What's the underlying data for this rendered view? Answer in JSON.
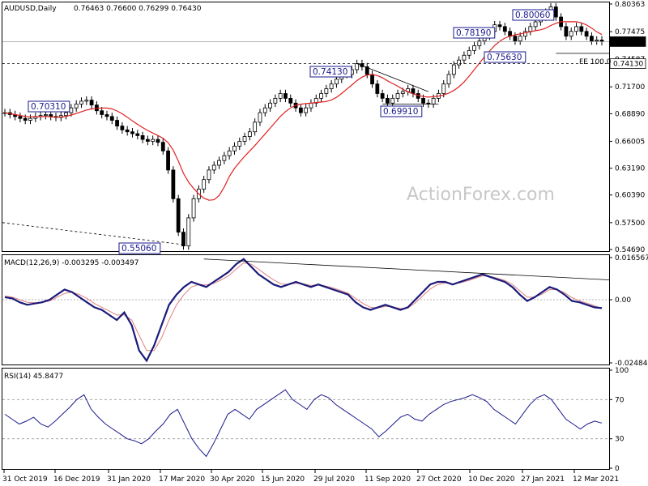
{
  "header": {
    "symbol": "AUDUSD,Daily",
    "ohlc": "0.76463 0.76600 0.76299 0.76430"
  },
  "watermark": "ActionForex.com",
  "colors": {
    "candle": "#000000",
    "ma": "#e02020",
    "macd": "#1a1a7a",
    "signal": "#e08080",
    "rsi": "#1a1a8c",
    "label_border": "#1a1a8c"
  },
  "chart_data": [
    {
      "type": "candlestick",
      "title": "AUDUSD,Daily",
      "y_ticks": [
        "0.80363",
        "0.77475",
        "0.74587",
        "0.71700",
        "0.68890",
        "0.66005",
        "0.63190",
        "0.60390",
        "0.57500",
        "0.54690"
      ],
      "ylim": [
        0.5469,
        0.8036
      ],
      "x_ticks": [
        "31 Oct 2019",
        "16 Dec 2019",
        "31 Jan 2020",
        "17 Mar 2020",
        "30 Apr 2020",
        "15 Jun 2020",
        "29 Jul 2020",
        "11 Sep 2020",
        "27 Oct 2020",
        "10 Dec 2020",
        "27 Jan 2021",
        "12 Mar 2021"
      ],
      "series": [
        {
          "values": [
            0.69,
            0.688,
            0.686,
            0.684,
            0.682,
            0.684,
            0.686,
            0.687,
            0.688,
            0.686,
            0.685,
            0.687,
            0.69,
            0.695,
            0.699,
            0.702,
            0.7031,
            0.698,
            0.692,
            0.688,
            0.686,
            0.682,
            0.676,
            0.672,
            0.67,
            0.668,
            0.666,
            0.662,
            0.66,
            0.662,
            0.659,
            0.65,
            0.63,
            0.6,
            0.565,
            0.5506,
            0.58,
            0.6,
            0.61,
            0.62,
            0.63,
            0.635,
            0.64,
            0.645,
            0.65,
            0.655,
            0.66,
            0.665,
            0.67,
            0.68,
            0.69,
            0.695,
            0.7,
            0.705,
            0.71,
            0.705,
            0.7,
            0.695,
            0.69,
            0.695,
            0.7,
            0.705,
            0.71,
            0.715,
            0.72,
            0.725,
            0.73,
            0.73,
            0.735,
            0.7413,
            0.738,
            0.73,
            0.72,
            0.71,
            0.705,
            0.7,
            0.705,
            0.71,
            0.712,
            0.715,
            0.71,
            0.705,
            0.7,
            0.6991,
            0.705,
            0.71,
            0.72,
            0.73,
            0.74,
            0.745,
            0.75,
            0.755,
            0.76,
            0.765,
            0.77,
            0.775,
            0.7819,
            0.78,
            0.775,
            0.77,
            0.765,
            0.77,
            0.775,
            0.78,
            0.785,
            0.79,
            0.795,
            0.8006,
            0.79,
            0.78,
            0.77,
            0.775,
            0.78,
            0.775,
            0.77,
            0.765,
            0.766,
            0.7643
          ]
        }
      ],
      "annotations": [
        "0.70310",
        "0.55060",
        "0.74130",
        "0.69910",
        "0.78190",
        "0.75630",
        "0.80060",
        "FE 100.0"
      ],
      "price_tags": [
        "0.76430",
        "0.74130"
      ]
    },
    {
      "type": "line",
      "title": "MACD(12,26,9) -0.003295 -0.003497",
      "y_ticks": [
        "0.016567",
        "0.00",
        "-0.02484"
      ],
      "ylim": [
        -0.02484,
        0.016567
      ],
      "series": [
        {
          "values": [
            0.001,
            0.0005,
            -0.001,
            -0.002,
            -0.0015,
            -0.001,
            0.0,
            0.002,
            0.004,
            0.003,
            0.001,
            -0.001,
            -0.003,
            -0.004,
            -0.006,
            -0.008,
            -0.005,
            -0.01,
            -0.02,
            -0.024,
            -0.018,
            -0.01,
            -0.002,
            0.002,
            0.005,
            0.007,
            0.006,
            0.005,
            0.007,
            0.009,
            0.011,
            0.014,
            0.016,
            0.013,
            0.01,
            0.008,
            0.006,
            0.005,
            0.006,
            0.007,
            0.006,
            0.005,
            0.006,
            0.005,
            0.004,
            0.003,
            0.002,
            -0.001,
            -0.003,
            -0.004,
            -0.003,
            -0.002,
            -0.003,
            -0.004,
            -0.003,
            0.0,
            0.003,
            0.006,
            0.007,
            0.007,
            0.006,
            0.007,
            0.008,
            0.009,
            0.01,
            0.009,
            0.008,
            0.007,
            0.005,
            0.002,
            -0.0005,
            0.001,
            0.003,
            0.005,
            0.004,
            0.002,
            -0.0005,
            -0.001,
            -0.002,
            -0.003,
            -0.0033
          ]
        },
        {
          "values": [
            0.0015,
            0.001,
            0.0,
            -0.001,
            -0.0012,
            -0.001,
            -0.0005,
            0.001,
            0.0025,
            0.003,
            0.002,
            0.0005,
            -0.0015,
            -0.003,
            -0.0045,
            -0.006,
            -0.006,
            -0.008,
            -0.014,
            -0.02,
            -0.02,
            -0.015,
            -0.008,
            -0.002,
            0.002,
            0.005,
            0.006,
            0.0058,
            0.0064,
            0.0078,
            0.0095,
            0.012,
            0.0145,
            0.014,
            0.012,
            0.0098,
            0.0078,
            0.0062,
            0.006,
            0.0065,
            0.0062,
            0.0056,
            0.0058,
            0.0054,
            0.0046,
            0.0036,
            0.0026,
            0.0005,
            -0.0015,
            -0.003,
            -0.0032,
            -0.0026,
            -0.0028,
            -0.0035,
            -0.0033,
            -0.0012,
            0.0015,
            0.0042,
            0.006,
            0.0066,
            0.0062,
            0.0066,
            0.0074,
            0.0084,
            0.0094,
            0.0092,
            0.0085,
            0.0076,
            0.006,
            0.0035,
            0.001,
            0.001,
            0.0022,
            0.004,
            0.004,
            0.0028,
            0.0008,
            -0.0004,
            -0.0014,
            -0.0024,
            -0.0035
          ]
        }
      ]
    },
    {
      "type": "line",
      "title": "RSI(14) 45.8477",
      "y_ticks": [
        "100",
        "70",
        "30",
        "0"
      ],
      "ylim": [
        0,
        100
      ],
      "series": [
        {
          "values": [
            55,
            50,
            45,
            48,
            52,
            45,
            42,
            48,
            55,
            62,
            70,
            75,
            60,
            52,
            45,
            40,
            35,
            30,
            28,
            25,
            30,
            38,
            45,
            55,
            60,
            45,
            30,
            20,
            12,
            25,
            40,
            55,
            60,
            55,
            50,
            60,
            65,
            70,
            75,
            80,
            70,
            65,
            60,
            70,
            75,
            72,
            65,
            60,
            55,
            50,
            45,
            40,
            32,
            38,
            45,
            52,
            55,
            50,
            48,
            55,
            60,
            65,
            68,
            70,
            72,
            75,
            72,
            68,
            60,
            55,
            50,
            45,
            55,
            65,
            72,
            75,
            70,
            60,
            50,
            45,
            40,
            45,
            48,
            46
          ]
        }
      ]
    }
  ]
}
